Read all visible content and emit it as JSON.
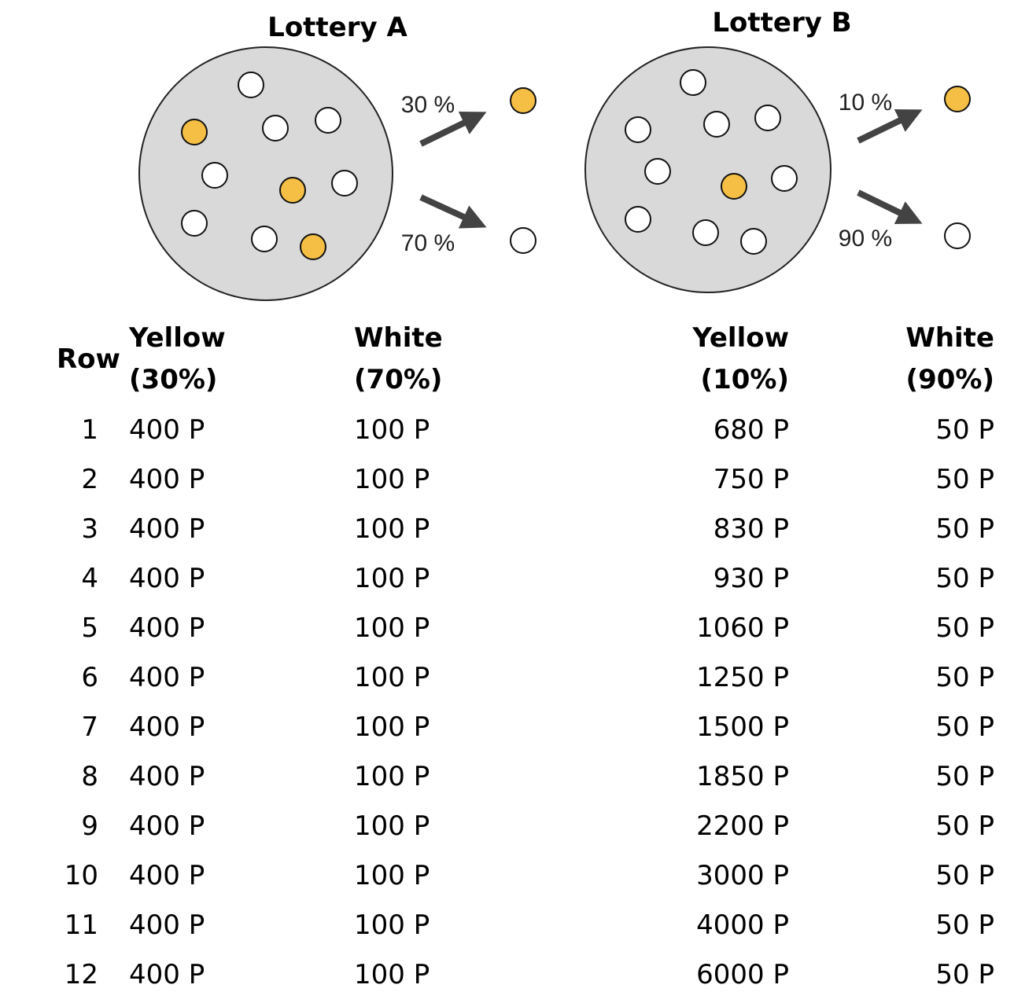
{
  "lottery_a": {
    "title": "Lottery A",
    "yellow_pct": "30 %",
    "white_pct": "70 %"
  },
  "lottery_b": {
    "title": "Lottery B",
    "yellow_pct": "10 %",
    "white_pct": "90 %"
  },
  "colors": {
    "yellow_ball": "#f4bf44",
    "white_ball": "#ffffff",
    "urn_fill": "#d9d9d9",
    "arrow": "#434343"
  },
  "table": {
    "headers": {
      "row": "Row",
      "a_yellow": "Yellow",
      "a_yellow_pct": "(30%)",
      "a_white": "White",
      "a_white_pct": "(70%)",
      "b_yellow": "Yellow",
      "b_yellow_pct": "(10%)",
      "b_white": "White",
      "b_white_pct": "(90%)"
    },
    "rows": [
      {
        "row": "1",
        "a_yellow": "400 P",
        "a_white": "100 P",
        "b_yellow": "680 P",
        "b_white": "50 P"
      },
      {
        "row": "2",
        "a_yellow": "400 P",
        "a_white": "100 P",
        "b_yellow": "750 P",
        "b_white": "50 P"
      },
      {
        "row": "3",
        "a_yellow": "400 P",
        "a_white": "100 P",
        "b_yellow": "830 P",
        "b_white": "50 P"
      },
      {
        "row": "4",
        "a_yellow": "400 P",
        "a_white": "100 P",
        "b_yellow": "930 P",
        "b_white": "50 P"
      },
      {
        "row": "5",
        "a_yellow": "400 P",
        "a_white": "100 P",
        "b_yellow": "1060 P",
        "b_white": "50 P"
      },
      {
        "row": "6",
        "a_yellow": "400 P",
        "a_white": "100 P",
        "b_yellow": "1250 P",
        "b_white": "50 P"
      },
      {
        "row": "7",
        "a_yellow": "400 P",
        "a_white": "100 P",
        "b_yellow": "1500 P",
        "b_white": "50 P"
      },
      {
        "row": "8",
        "a_yellow": "400 P",
        "a_white": "100 P",
        "b_yellow": "1850 P",
        "b_white": "50 P"
      },
      {
        "row": "9",
        "a_yellow": "400 P",
        "a_white": "100 P",
        "b_yellow": "2200 P",
        "b_white": "50 P"
      },
      {
        "row": "10",
        "a_yellow": "400 P",
        "a_white": "100 P",
        "b_yellow": "3000 P",
        "b_white": "50 P"
      },
      {
        "row": "11",
        "a_yellow": "400 P",
        "a_white": "100 P",
        "b_yellow": "4000 P",
        "b_white": "50 P"
      },
      {
        "row": "12",
        "a_yellow": "400 P",
        "a_white": "100 P",
        "b_yellow": "6000 P",
        "b_white": "50 P"
      }
    ]
  }
}
